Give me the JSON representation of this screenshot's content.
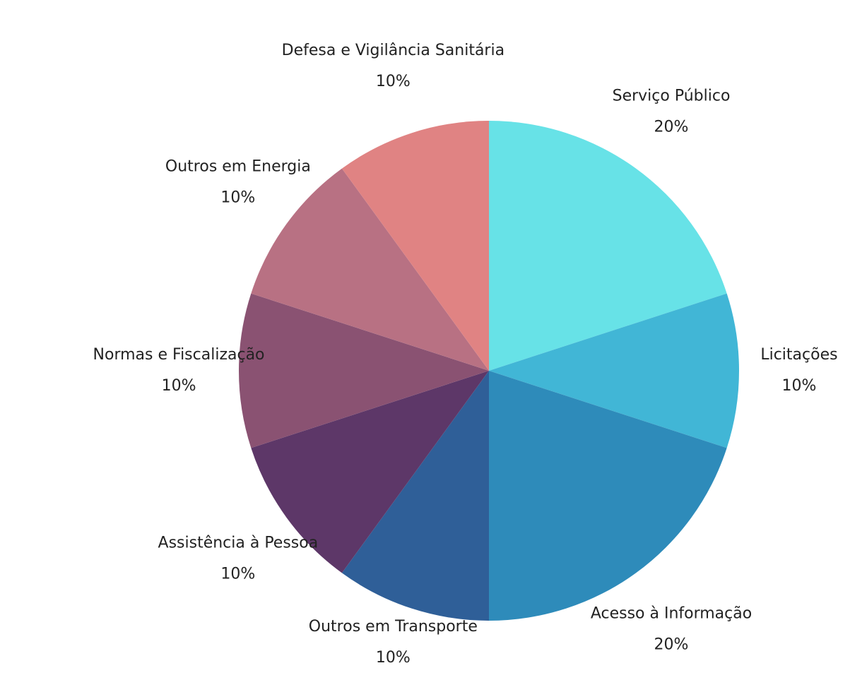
{
  "chart_data": {
    "type": "pie",
    "categories": [
      "Serviço Público",
      "Licitações",
      "Acesso à Informação",
      "Outros em Transporte",
      "Assistência à Pessoa",
      "Normas e Fiscalização",
      "Outros em Energia",
      "Defesa e Vigilância Sanitária"
    ],
    "values": [
      20,
      10,
      20,
      10,
      10,
      10,
      10,
      10
    ],
    "value_labels": [
      "20%",
      "10%",
      "20%",
      "10%",
      "10%",
      "10%",
      "10%",
      "10%"
    ],
    "colors": [
      "#67e2e7",
      "#41b6d6",
      "#2e8bba",
      "#2f5f98",
      "#5d3768",
      "#8a5272",
      "#b87183",
      "#e08383"
    ]
  }
}
